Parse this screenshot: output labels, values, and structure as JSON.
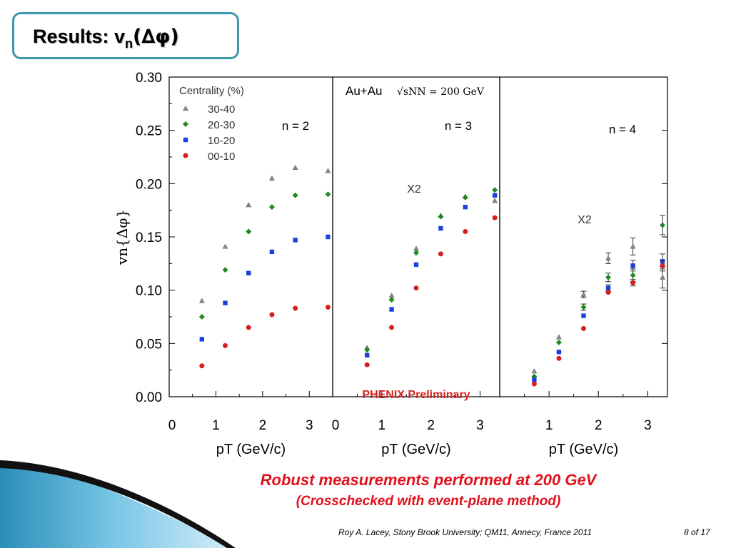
{
  "slide": {
    "title_prefix": "Results: v",
    "title_sub": "n",
    "title_paren": "(∆φ)",
    "caption_main": "Robust measurements performed at 200 GeV",
    "caption_sub": "(Crosschecked with event-plane method)",
    "footer": "Roy A. Lacey, Stony Brook University; QM11, Annecy, France 2011",
    "page": "8 of 17"
  },
  "chart_data": {
    "type": "scatter",
    "ylabel": "vn{Δφ}",
    "ylim": [
      0,
      0.3
    ],
    "yticks": [
      "0.00",
      "0.05",
      "0.10",
      "0.15",
      "0.20",
      "0.25",
      "0.30"
    ],
    "legend_title": "Centrality (%)",
    "legend_position": "top-left",
    "series_styles": [
      {
        "name": "30-40",
        "marker": "triangle",
        "color": "#8a8a8a"
      },
      {
        "name": "20-30",
        "marker": "diamond",
        "color": "#1f8a1f"
      },
      {
        "name": "10-20",
        "marker": "square",
        "color": "#1c3fe0"
      },
      {
        "name": "00-10",
        "marker": "circle",
        "color": "#d42020"
      }
    ],
    "panels": [
      {
        "label": "n = 2",
        "xlabel": "pT (GeV/c)",
        "xlim": [
          0,
          3.5
        ],
        "xticks": [
          "0",
          "1",
          "2",
          "3"
        ],
        "series": [
          {
            "name": "30-40",
            "x": [
              0.7,
              1.2,
              1.7,
              2.2,
              2.7,
              3.4
            ],
            "y": [
              0.09,
              0.141,
              0.18,
              0.205,
              0.215,
              0.212
            ]
          },
          {
            "name": "20-30",
            "x": [
              0.7,
              1.2,
              1.7,
              2.2,
              2.7,
              3.4
            ],
            "y": [
              0.075,
              0.119,
              0.155,
              0.178,
              0.189,
              0.19
            ]
          },
          {
            "name": "10-20",
            "x": [
              0.7,
              1.2,
              1.7,
              2.2,
              2.7,
              3.4
            ],
            "y": [
              0.054,
              0.088,
              0.116,
              0.136,
              0.147,
              0.15
            ]
          },
          {
            "name": "00-10",
            "x": [
              0.7,
              1.2,
              1.7,
              2.2,
              2.7,
              3.4
            ],
            "y": [
              0.029,
              0.048,
              0.065,
              0.077,
              0.083,
              0.084
            ]
          }
        ]
      },
      {
        "label": "n = 3",
        "annotation": "X2",
        "system": "Au+Au",
        "energy": "√sNN = 200 GeV",
        "preliminary": "PHENIX Preliminary",
        "xlabel": "pT (GeV/c)",
        "xlim": [
          0,
          3.4
        ],
        "xticks": [
          "0",
          "1",
          "2",
          "3"
        ],
        "series": [
          {
            "name": "30-40",
            "x": [
              0.7,
              1.2,
              1.7,
              2.2,
              2.7,
              3.3
            ],
            "y": [
              0.046,
              0.095,
              0.139,
              0.17,
              0.188,
              0.184
            ]
          },
          {
            "name": "20-30",
            "x": [
              0.7,
              1.2,
              1.7,
              2.2,
              2.7,
              3.3
            ],
            "y": [
              0.044,
              0.091,
              0.135,
              0.169,
              0.187,
              0.194
            ]
          },
          {
            "name": "10-20",
            "x": [
              0.7,
              1.2,
              1.7,
              2.2,
              2.7,
              3.3
            ],
            "y": [
              0.039,
              0.082,
              0.124,
              0.158,
              0.178,
              0.189
            ]
          },
          {
            "name": "00-10",
            "x": [
              0.7,
              1.2,
              1.7,
              2.2,
              2.7,
              3.3
            ],
            "y": [
              0.03,
              0.065,
              0.102,
              0.134,
              0.155,
              0.168
            ]
          }
        ]
      },
      {
        "label": "n = 4",
        "annotation": "X2",
        "xlabel": "pT (GeV/c)",
        "xlim": [
          0,
          3.4
        ],
        "xticks": [
          "1",
          "2",
          "3"
        ],
        "series": [
          {
            "name": "30-40",
            "x": [
              0.7,
              1.2,
              1.7,
              2.2,
              2.7,
              3.3
            ],
            "y": [
              0.024,
              0.056,
              0.096,
              0.13,
              0.141,
              0.112
            ],
            "err": [
              0.002,
              0.002,
              0.003,
              0.005,
              0.008,
              0.01
            ]
          },
          {
            "name": "20-30",
            "x": [
              0.7,
              1.2,
              1.7,
              2.2,
              2.7,
              3.3
            ],
            "y": [
              0.019,
              0.051,
              0.084,
              0.112,
              0.114,
              0.161
            ],
            "err": [
              0.001,
              0.002,
              0.003,
              0.004,
              0.006,
              0.009
            ]
          },
          {
            "name": "10-20",
            "x": [
              0.7,
              1.2,
              1.7,
              2.2,
              2.7,
              3.3
            ],
            "y": [
              0.016,
              0.042,
              0.076,
              0.102,
              0.123,
              0.127
            ],
            "err": [
              0.001,
              0.002,
              0.002,
              0.003,
              0.005,
              0.007
            ]
          },
          {
            "name": "00-10",
            "x": [
              0.7,
              1.2,
              1.7,
              2.2,
              2.7,
              3.3
            ],
            "y": [
              0.012,
              0.036,
              0.064,
              0.098,
              0.107,
              0.123
            ],
            "err": [
              0.001,
              0.001,
              0.002,
              0.002,
              0.003,
              0.005
            ]
          }
        ]
      }
    ]
  }
}
